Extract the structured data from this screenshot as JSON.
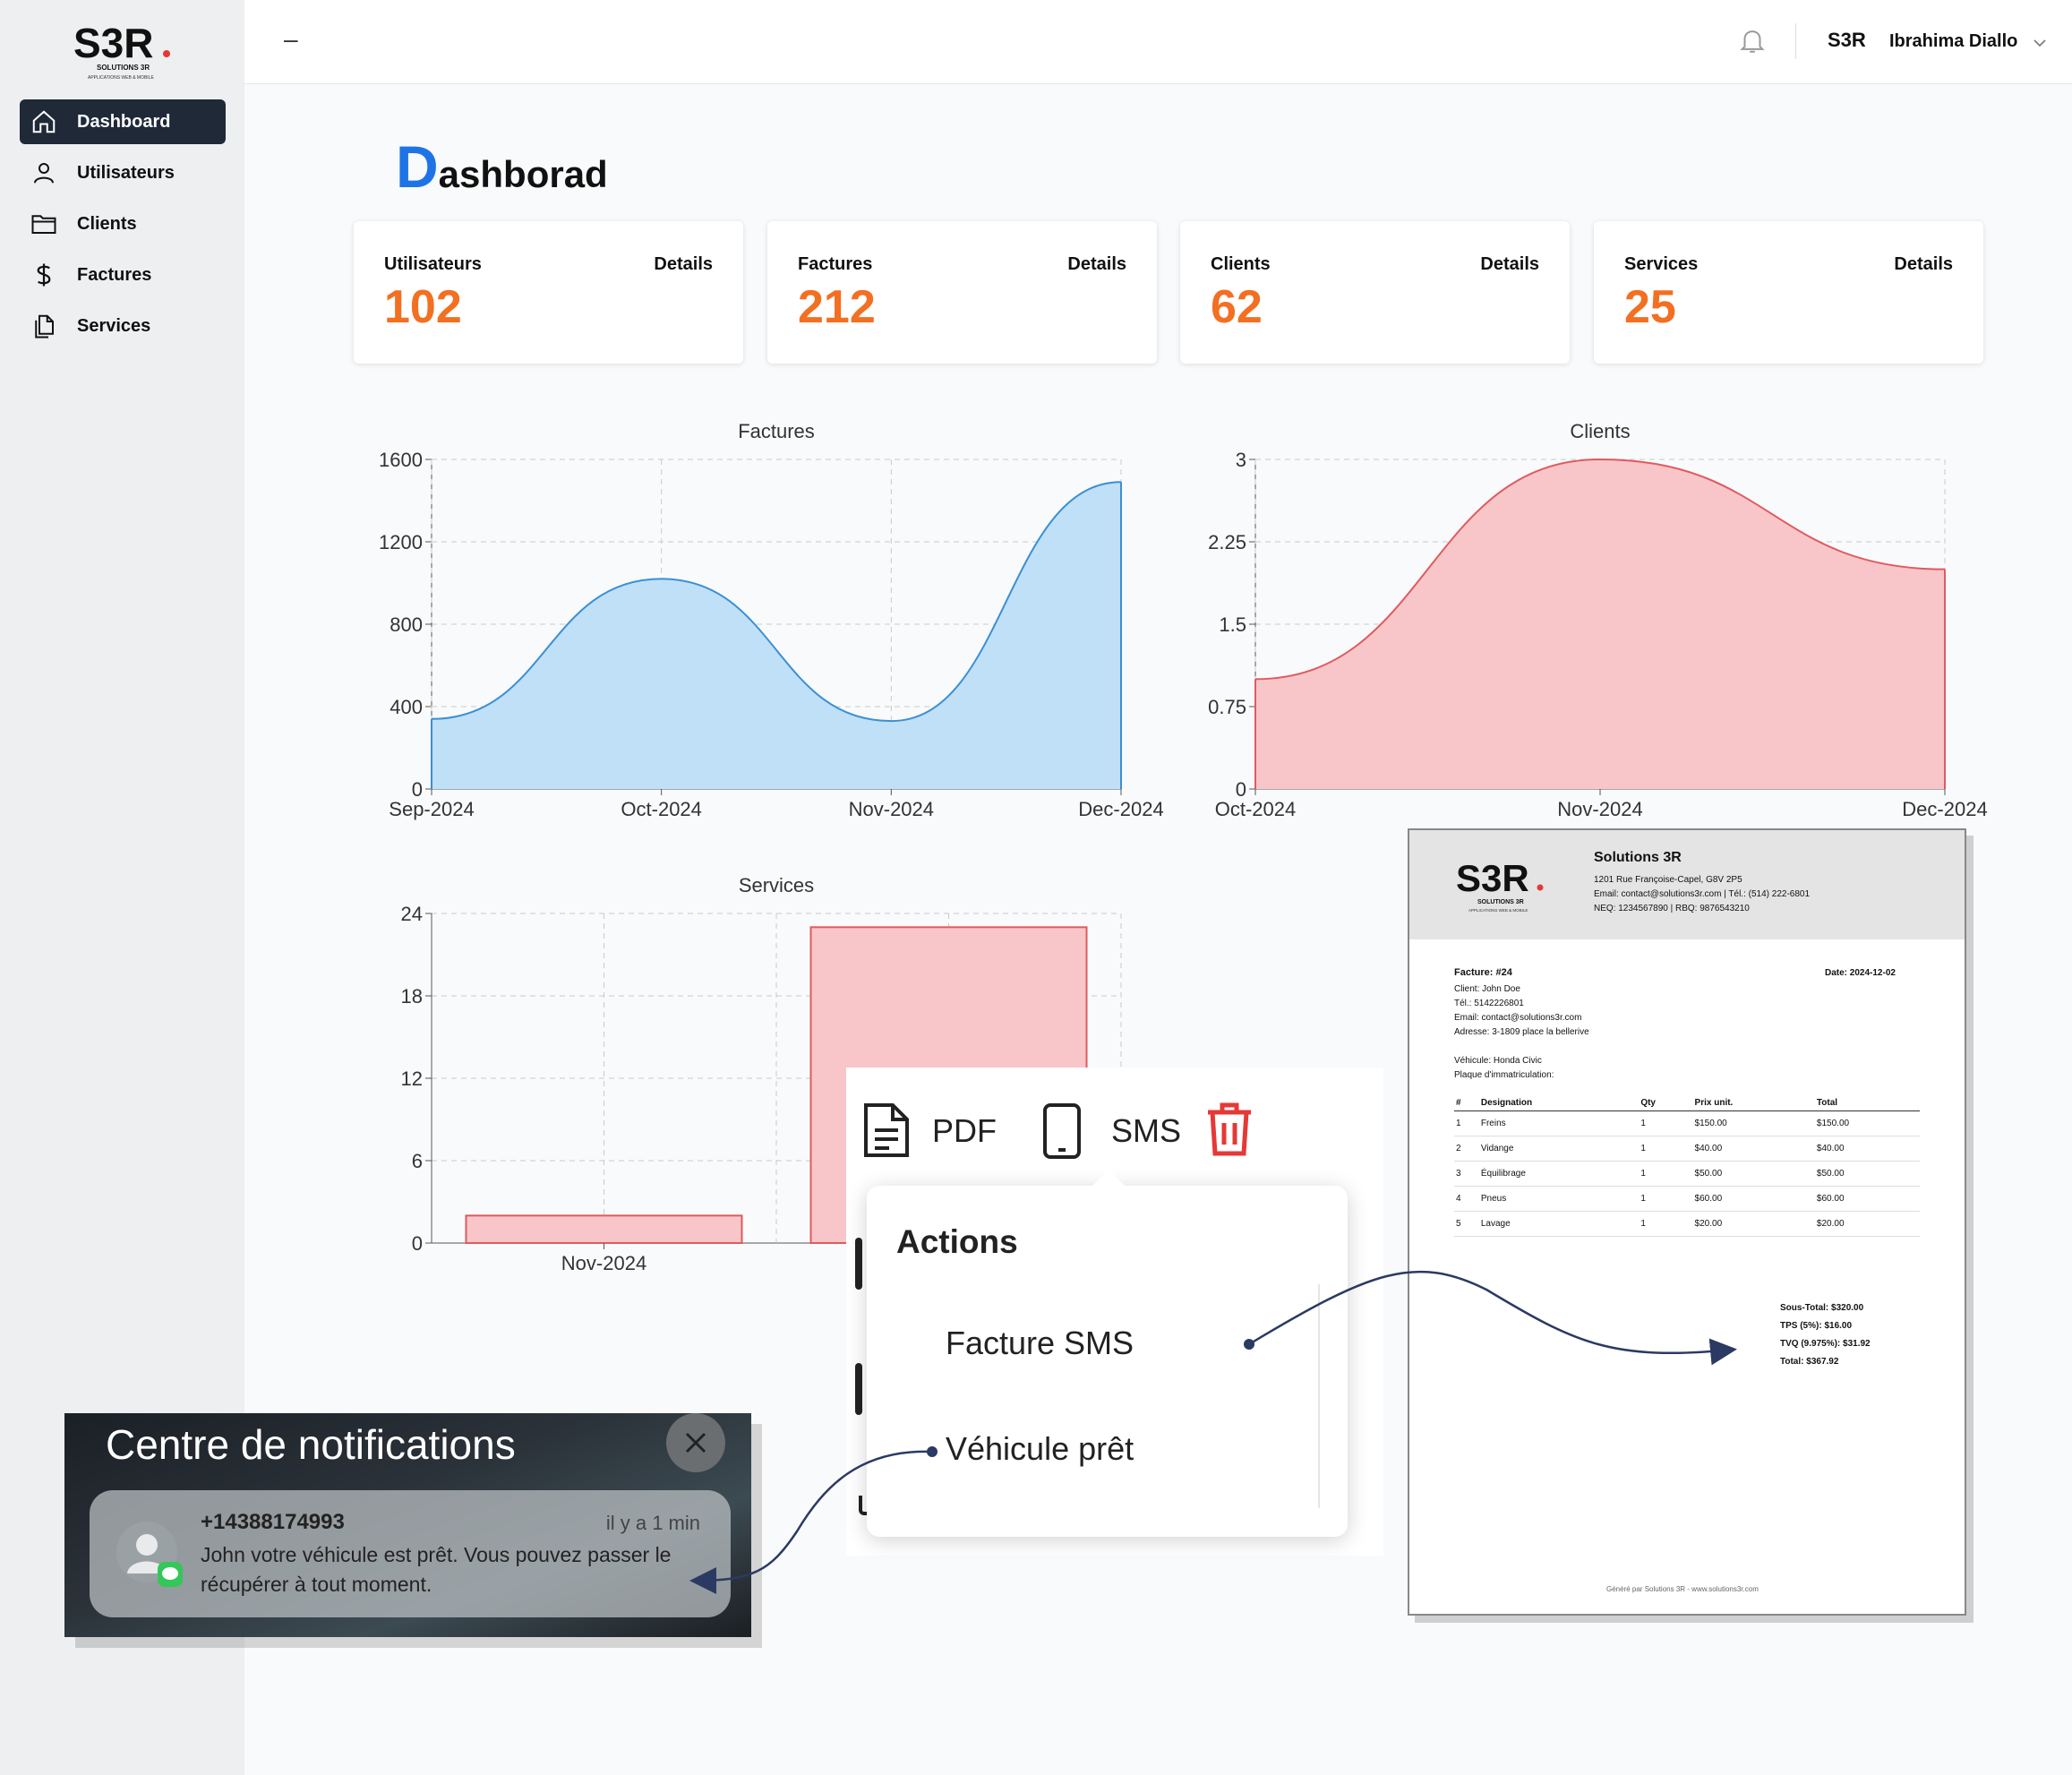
{
  "brand": {
    "logo_text": "S3R",
    "logo_sub": "SOLUTIONS 3R",
    "logo_tag": "APPLICATIONS WEB & MOBILE"
  },
  "sidebar": {
    "items": [
      {
        "label": "Dashboard",
        "icon": "home-icon",
        "active": true
      },
      {
        "label": "Utilisateurs",
        "icon": "user-icon"
      },
      {
        "label": "Clients",
        "icon": "folder-icon"
      },
      {
        "label": "Factures",
        "icon": "dollar-icon"
      },
      {
        "label": "Services",
        "icon": "documents-icon"
      }
    ]
  },
  "header": {
    "menu_toggle": "–",
    "user_name": "Ibrahima Diallo",
    "user_logo": "S3R"
  },
  "page": {
    "title_initial": "D",
    "title_rest": "ashborad"
  },
  "stats": [
    {
      "label": "Utilisateurs",
      "details": "Details",
      "value": "102"
    },
    {
      "label": "Factures",
      "details": "Details",
      "value": "212"
    },
    {
      "label": "Clients",
      "details": "Details",
      "value": "62"
    },
    {
      "label": "Services",
      "details": "Details",
      "value": "25"
    }
  ],
  "colors": {
    "accent_blue": "#1e74e6",
    "stat_orange": "#f36f21",
    "sidebar_active": "#1f2937",
    "area_blue": "#bfe0f7",
    "line_blue": "#3b8fd4",
    "area_red": "#f8c6c9",
    "line_red": "#e05a5f",
    "delete_red": "#e53935"
  },
  "chart_data": [
    {
      "type": "area",
      "title": "Factures",
      "x": [
        "Sep-2024",
        "Oct-2024",
        "Nov-2024",
        "Dec-2024"
      ],
      "series": [
        {
          "values": [
            340,
            1020,
            330,
            1490
          ]
        }
      ],
      "ylim": [
        0,
        1600
      ],
      "yticks": [
        0,
        400,
        800,
        1200,
        1600
      ],
      "grid": true
    },
    {
      "type": "area",
      "title": "Clients",
      "x": [
        "Oct-2024",
        "Nov-2024",
        "Dec-2024"
      ],
      "series": [
        {
          "values": [
            1,
            3,
            2
          ]
        }
      ],
      "ylim": [
        0,
        3
      ],
      "yticks": [
        0,
        0.75,
        1.5,
        2.25,
        3
      ],
      "grid": true
    },
    {
      "type": "bar",
      "title": "Services",
      "categories": [
        "Nov-2024",
        ""
      ],
      "values": [
        2,
        23
      ],
      "ylim": [
        0,
        24
      ],
      "yticks": [
        0,
        6,
        12,
        18,
        24
      ],
      "grid": true
    }
  ],
  "toolbar": {
    "pdf_label": "PDF",
    "sms_label": "SMS"
  },
  "actions": {
    "title": "Actions",
    "items": [
      "Facture SMS",
      "Véhicule prêt"
    ]
  },
  "notification": {
    "center_title": "Centre de notifications",
    "from": "+14388174993",
    "time": "il y a 1 min",
    "message": "John votre véhicule est prêt. Vous pouvez passer le récupérer à tout moment."
  },
  "invoice": {
    "company": "Solutions 3R",
    "address": "1201 Rue Françoise-Capel, G8V 2P5",
    "contact": "Email: contact@solutions3r.com | Tél.: (514) 222-6801",
    "neq": "NEQ: 1234567890 | RBQ: 9876543210",
    "number": "Facture: #24",
    "date": "Date: 2024-12-02",
    "client": "Client: John Doe",
    "tel": "Tél.: 5142226801",
    "email": "Email: contact@solutions3r.com",
    "addr": "Adresse: 3-1809 place la bellerive",
    "vehicle": "Véhicule: Honda Civic",
    "plate": "Plaque d'immatriculation:",
    "columns": [
      "#",
      "Designation",
      "Qty",
      "Prix unit.",
      "Total"
    ],
    "rows": [
      [
        "1",
        "Freins",
        "1",
        "$150.00",
        "$150.00"
      ],
      [
        "2",
        "Vidange",
        "1",
        "$40.00",
        "$40.00"
      ],
      [
        "3",
        "Équilibrage",
        "1",
        "$50.00",
        "$50.00"
      ],
      [
        "4",
        "Pneus",
        "1",
        "$60.00",
        "$60.00"
      ],
      [
        "5",
        "Lavage",
        "1",
        "$20.00",
        "$20.00"
      ]
    ],
    "subtotal": "Sous-Total: $320.00",
    "tps": "TPS (5%): $16.00",
    "tvq": "TVQ (9.975%): $31.92",
    "total": "Total: $367.92",
    "footer": "Généré par Solutions 3R - www.solutions3r.com"
  }
}
